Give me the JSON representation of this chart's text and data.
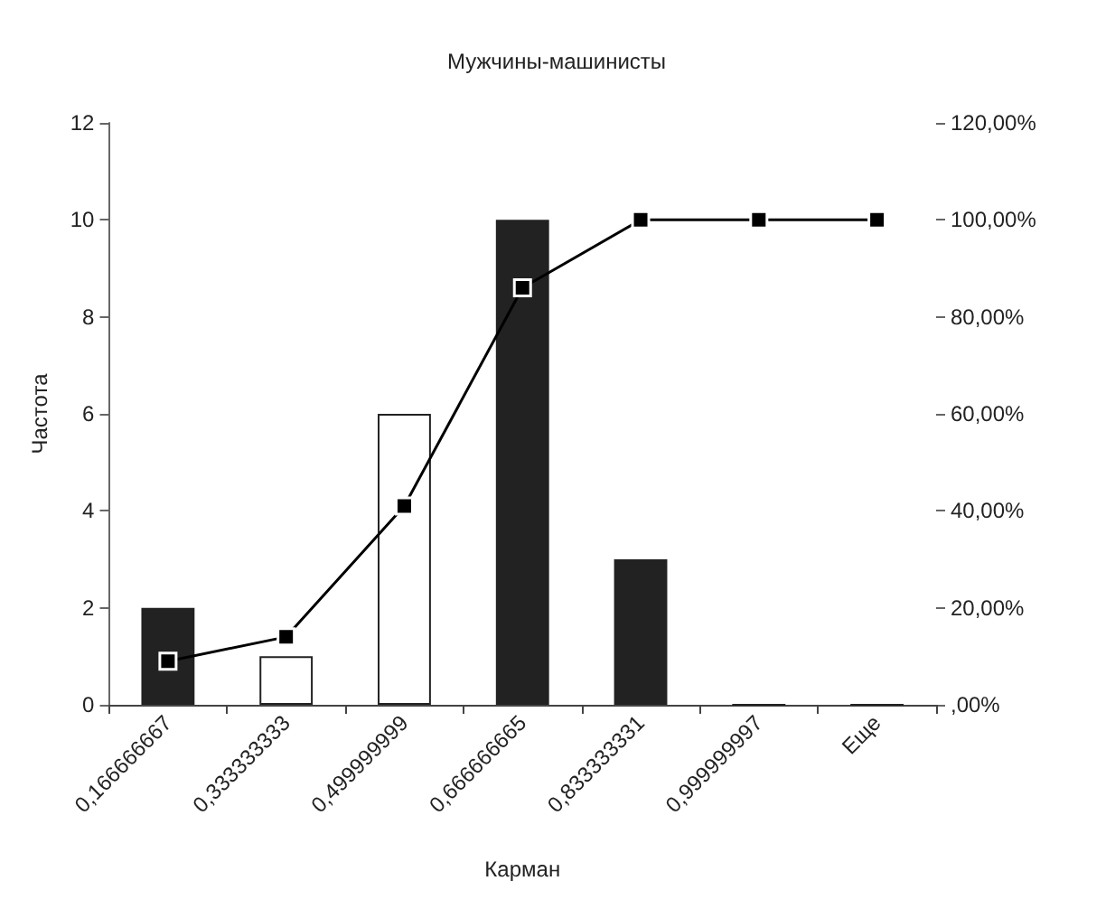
{
  "chart_data": {
    "type": "bar",
    "title": "Мужчины-машинисты",
    "xlabel": "Карман",
    "ylabel": "Частота",
    "categories": [
      "0,166666667",
      "0,333333333",
      "0,499999999",
      "0,666666665",
      "0,833333331",
      "0,999999997",
      "Еще"
    ],
    "series": [
      {
        "colors": [
          "#222222",
          "#ffffff",
          "#ffffff",
          "#222222",
          "#222222",
          "#222222",
          "#222222"
        ],
        "values": [
          2,
          1,
          6,
          10,
          3,
          0,
          0
        ]
      },
      {
        "type": "line",
        "axis": "y2",
        "color": "#000000",
        "marker": "square",
        "values": [
          9,
          14,
          41,
          86,
          100,
          100,
          100
        ]
      }
    ],
    "ylim": [
      0,
      12
    ],
    "yticks": [
      0,
      2,
      4,
      6,
      8,
      10,
      12
    ],
    "y2lim": [
      0,
      120
    ],
    "y2ticks": [
      {
        "value": 0,
        "label": ",00%"
      },
      {
        "value": 20,
        "label": "20,00%"
      },
      {
        "value": 40,
        "label": "40,00%"
      },
      {
        "value": 60,
        "label": "60,00%"
      },
      {
        "value": 80,
        "label": "80,00%"
      },
      {
        "value": 100,
        "label": "100,00%"
      },
      {
        "value": 120,
        "label": "120,00%"
      }
    ],
    "grid": false
  }
}
